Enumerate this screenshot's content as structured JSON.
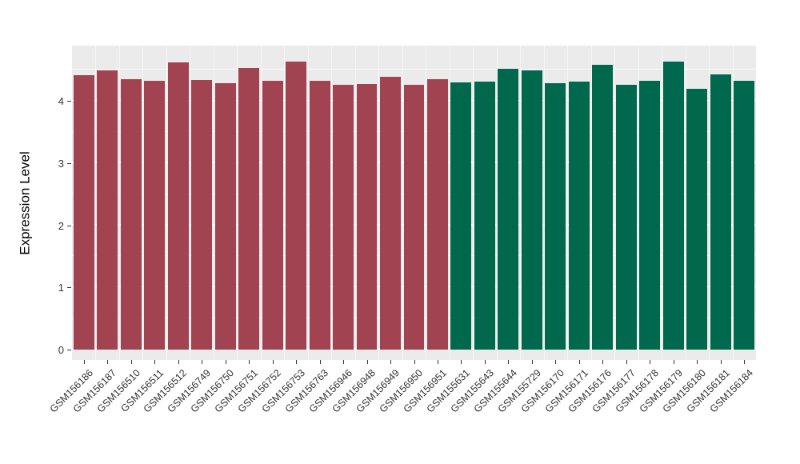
{
  "chart_data": {
    "type": "bar",
    "title": "",
    "xlabel": "",
    "ylabel": "Expression Level",
    "ylim": [
      0,
      4.8
    ],
    "yticks": [
      0,
      1,
      2,
      3,
      4
    ],
    "grid": "on",
    "legend": "none",
    "categories": [
      "GSM156186",
      "GSM156187",
      "GSM156510",
      "GSM156511",
      "GSM156512",
      "GSM156749",
      "GSM156750",
      "GSM156751",
      "GSM156752",
      "GSM156753",
      "GSM156763",
      "GSM156946",
      "GSM156948",
      "GSM156949",
      "GSM156950",
      "GSM156951",
      "GSM155631",
      "GSM155643",
      "GSM155644",
      "GSM155729",
      "GSM156170",
      "GSM156171",
      "GSM156176",
      "GSM156177",
      "GSM156178",
      "GSM156179",
      "GSM156180",
      "GSM156181",
      "GSM156184"
    ],
    "values": [
      4.41,
      4.49,
      4.35,
      4.32,
      4.62,
      4.33,
      4.28,
      4.53,
      4.32,
      4.63,
      4.32,
      4.26,
      4.27,
      4.39,
      4.26,
      4.35,
      4.3,
      4.31,
      4.51,
      4.49,
      4.28,
      4.31,
      4.58,
      4.26,
      4.32,
      4.63,
      4.19,
      4.42,
      4.32
    ],
    "groups": [
      "group1",
      "group1",
      "group1",
      "group1",
      "group1",
      "group1",
      "group1",
      "group1",
      "group1",
      "group1",
      "group1",
      "group1",
      "group1",
      "group1",
      "group1",
      "group1",
      "group2",
      "group2",
      "group2",
      "group2",
      "group2",
      "group2",
      "group2",
      "group2",
      "group2",
      "group2",
      "group2",
      "group2",
      "group2"
    ]
  },
  "colors": {
    "group1": "#A14351",
    "group2": "#00684D",
    "panel_bg": "#EBEBEB",
    "grid_major": "#FFFFFF",
    "grid_minor": "#FFFFFF",
    "axis_text": "#333333"
  }
}
